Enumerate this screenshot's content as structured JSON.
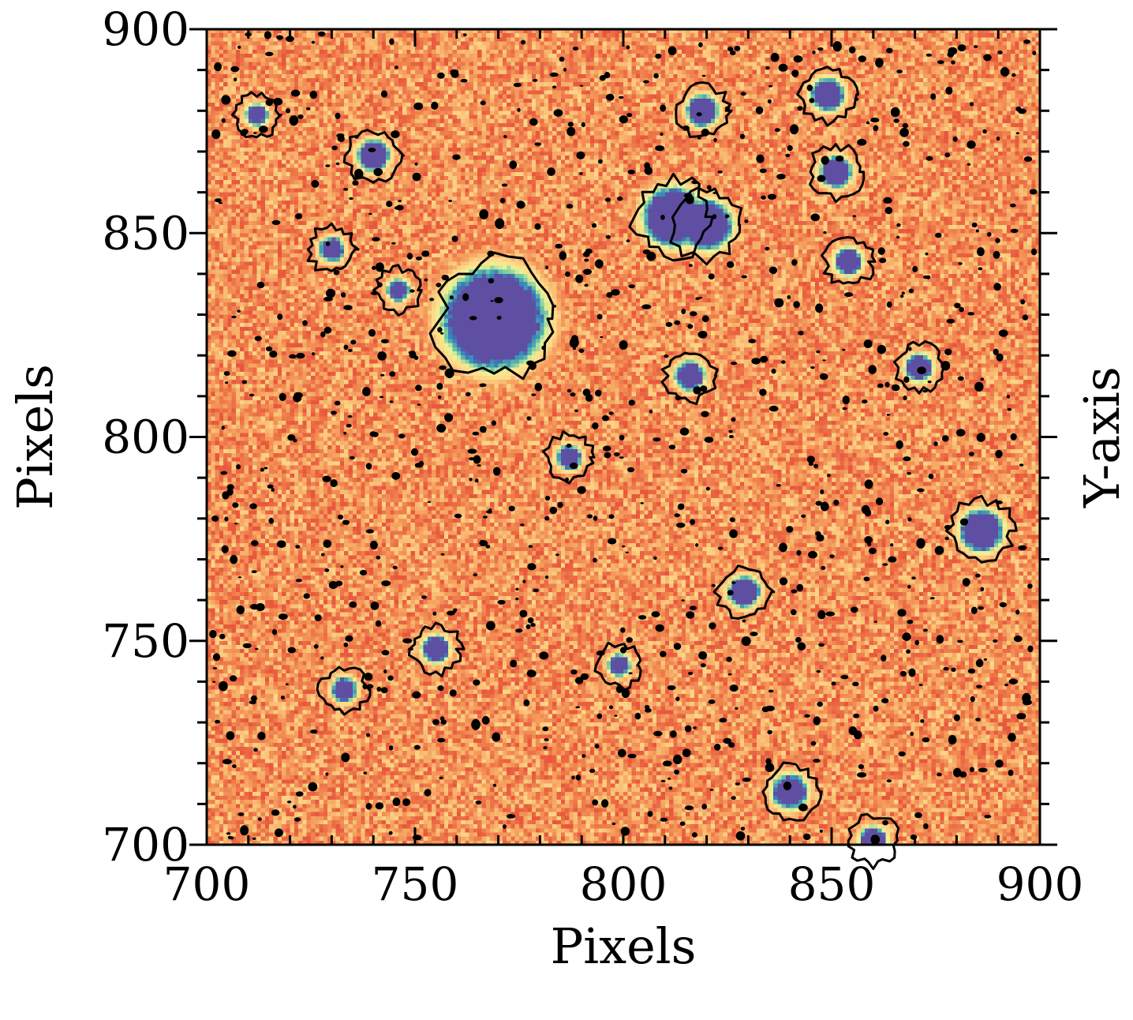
{
  "chart_data": {
    "type": "heatmap",
    "title": "",
    "xlabel": "Pixels",
    "ylabel": "Pixels",
    "ylabel_right": "Y-axis",
    "xlim": [
      700,
      900
    ],
    "ylim": [
      700,
      900
    ],
    "xticks": [
      700,
      750,
      800,
      850,
      900
    ],
    "yticks": [
      700,
      750,
      800,
      850,
      900
    ],
    "xtick_labels": [
      "700",
      "750",
      "800",
      "850",
      "900"
    ],
    "ytick_labels": [
      "700",
      "750",
      "800",
      "850",
      "900"
    ],
    "minor_tick_step": 10,
    "colormap": "Spectral",
    "colors": {
      "background_low": "#e8593c",
      "background_mid": "#f59d5c",
      "background_high": "#fdd98a",
      "halo": "#e6f598",
      "ring": "#66c2a5",
      "core": "#5e4fa2",
      "contour": "#000000"
    },
    "sources": [
      {
        "x": 769,
        "y": 829,
        "r": 10.5
      },
      {
        "x": 812,
        "y": 854,
        "r": 6
      },
      {
        "x": 820,
        "y": 852,
        "r": 5
      },
      {
        "x": 886,
        "y": 777,
        "r": 4.2
      },
      {
        "x": 849,
        "y": 884,
        "r": 3.2
      },
      {
        "x": 819,
        "y": 880,
        "r": 3
      },
      {
        "x": 851,
        "y": 865,
        "r": 3
      },
      {
        "x": 840,
        "y": 713,
        "r": 3.4
      },
      {
        "x": 816,
        "y": 815,
        "r": 2.8
      },
      {
        "x": 871,
        "y": 817,
        "r": 2.6
      },
      {
        "x": 829,
        "y": 762,
        "r": 3
      },
      {
        "x": 854,
        "y": 843,
        "r": 2.6
      },
      {
        "x": 740,
        "y": 869,
        "r": 3
      },
      {
        "x": 755,
        "y": 748,
        "r": 2.6
      },
      {
        "x": 733,
        "y": 738,
        "r": 2.3
      },
      {
        "x": 787,
        "y": 795,
        "r": 2.3
      },
      {
        "x": 860,
        "y": 701,
        "r": 2.6
      },
      {
        "x": 730,
        "y": 846,
        "r": 2.3
      },
      {
        "x": 712,
        "y": 879,
        "r": 2
      },
      {
        "x": 746,
        "y": 836,
        "r": 2
      },
      {
        "x": 799,
        "y": 744,
        "r": 2
      }
    ]
  }
}
